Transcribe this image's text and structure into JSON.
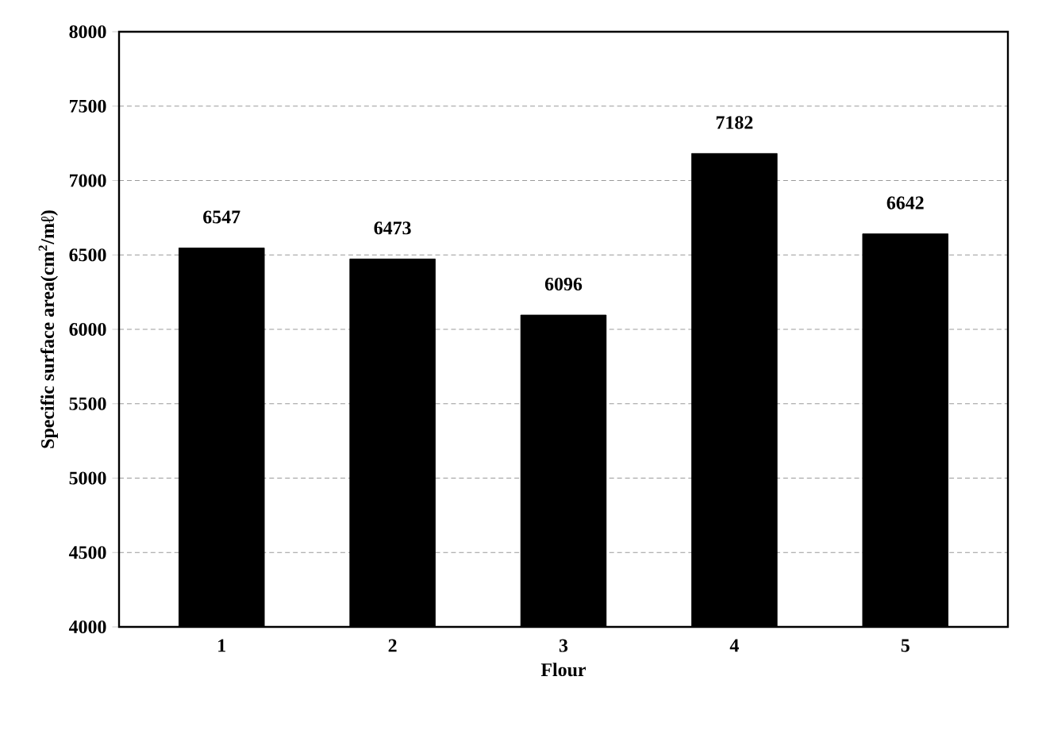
{
  "chart_data": {
    "type": "bar",
    "xlabel": "Flour",
    "ylabel": "Specific surface area(cm$^{2}$/mℓ)",
    "categories": [
      "1",
      "2",
      "3",
      "4",
      "5"
    ],
    "values": [
      6547,
      6473,
      6096,
      7182,
      6642
    ],
    "color": "#000000",
    "ylim": [
      4000,
      8000
    ],
    "yticks": [
      4000,
      4500,
      5000,
      5500,
      6000,
      6500,
      7000,
      7500,
      8000
    ],
    "grid": "y",
    "data_labels": true
  }
}
